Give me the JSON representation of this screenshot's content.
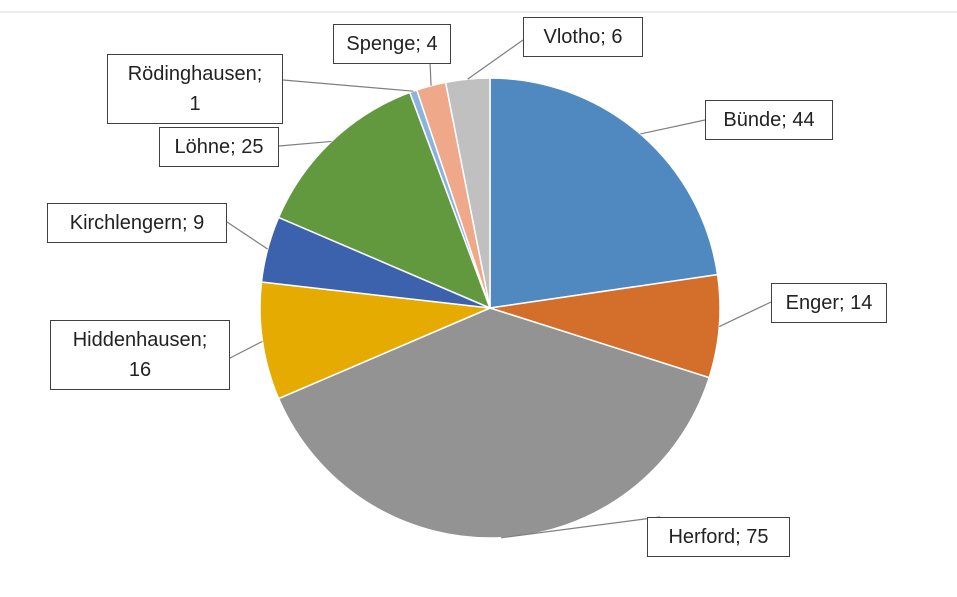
{
  "chart_data": {
    "type": "pie",
    "values": [
      44,
      14,
      75,
      16,
      9,
      25,
      1,
      4,
      6
    ],
    "value_labels": [
      "Bünde; 44",
      "Enger; 14",
      "Herford; 75",
      "Hiddenhausen; 16",
      "Kirchlengern; 9",
      "Löhne; 25",
      "Rödinghausen; 1",
      "Spenge; 4",
      "Vlotho; 6"
    ],
    "colors": [
      "#4f89bf",
      "#d46f2b",
      "#939393",
      "#e5ab00",
      "#3c62ad",
      "#62993e",
      "#8ab3de",
      "#f0a88a",
      "#c0c0c0"
    ]
  }
}
